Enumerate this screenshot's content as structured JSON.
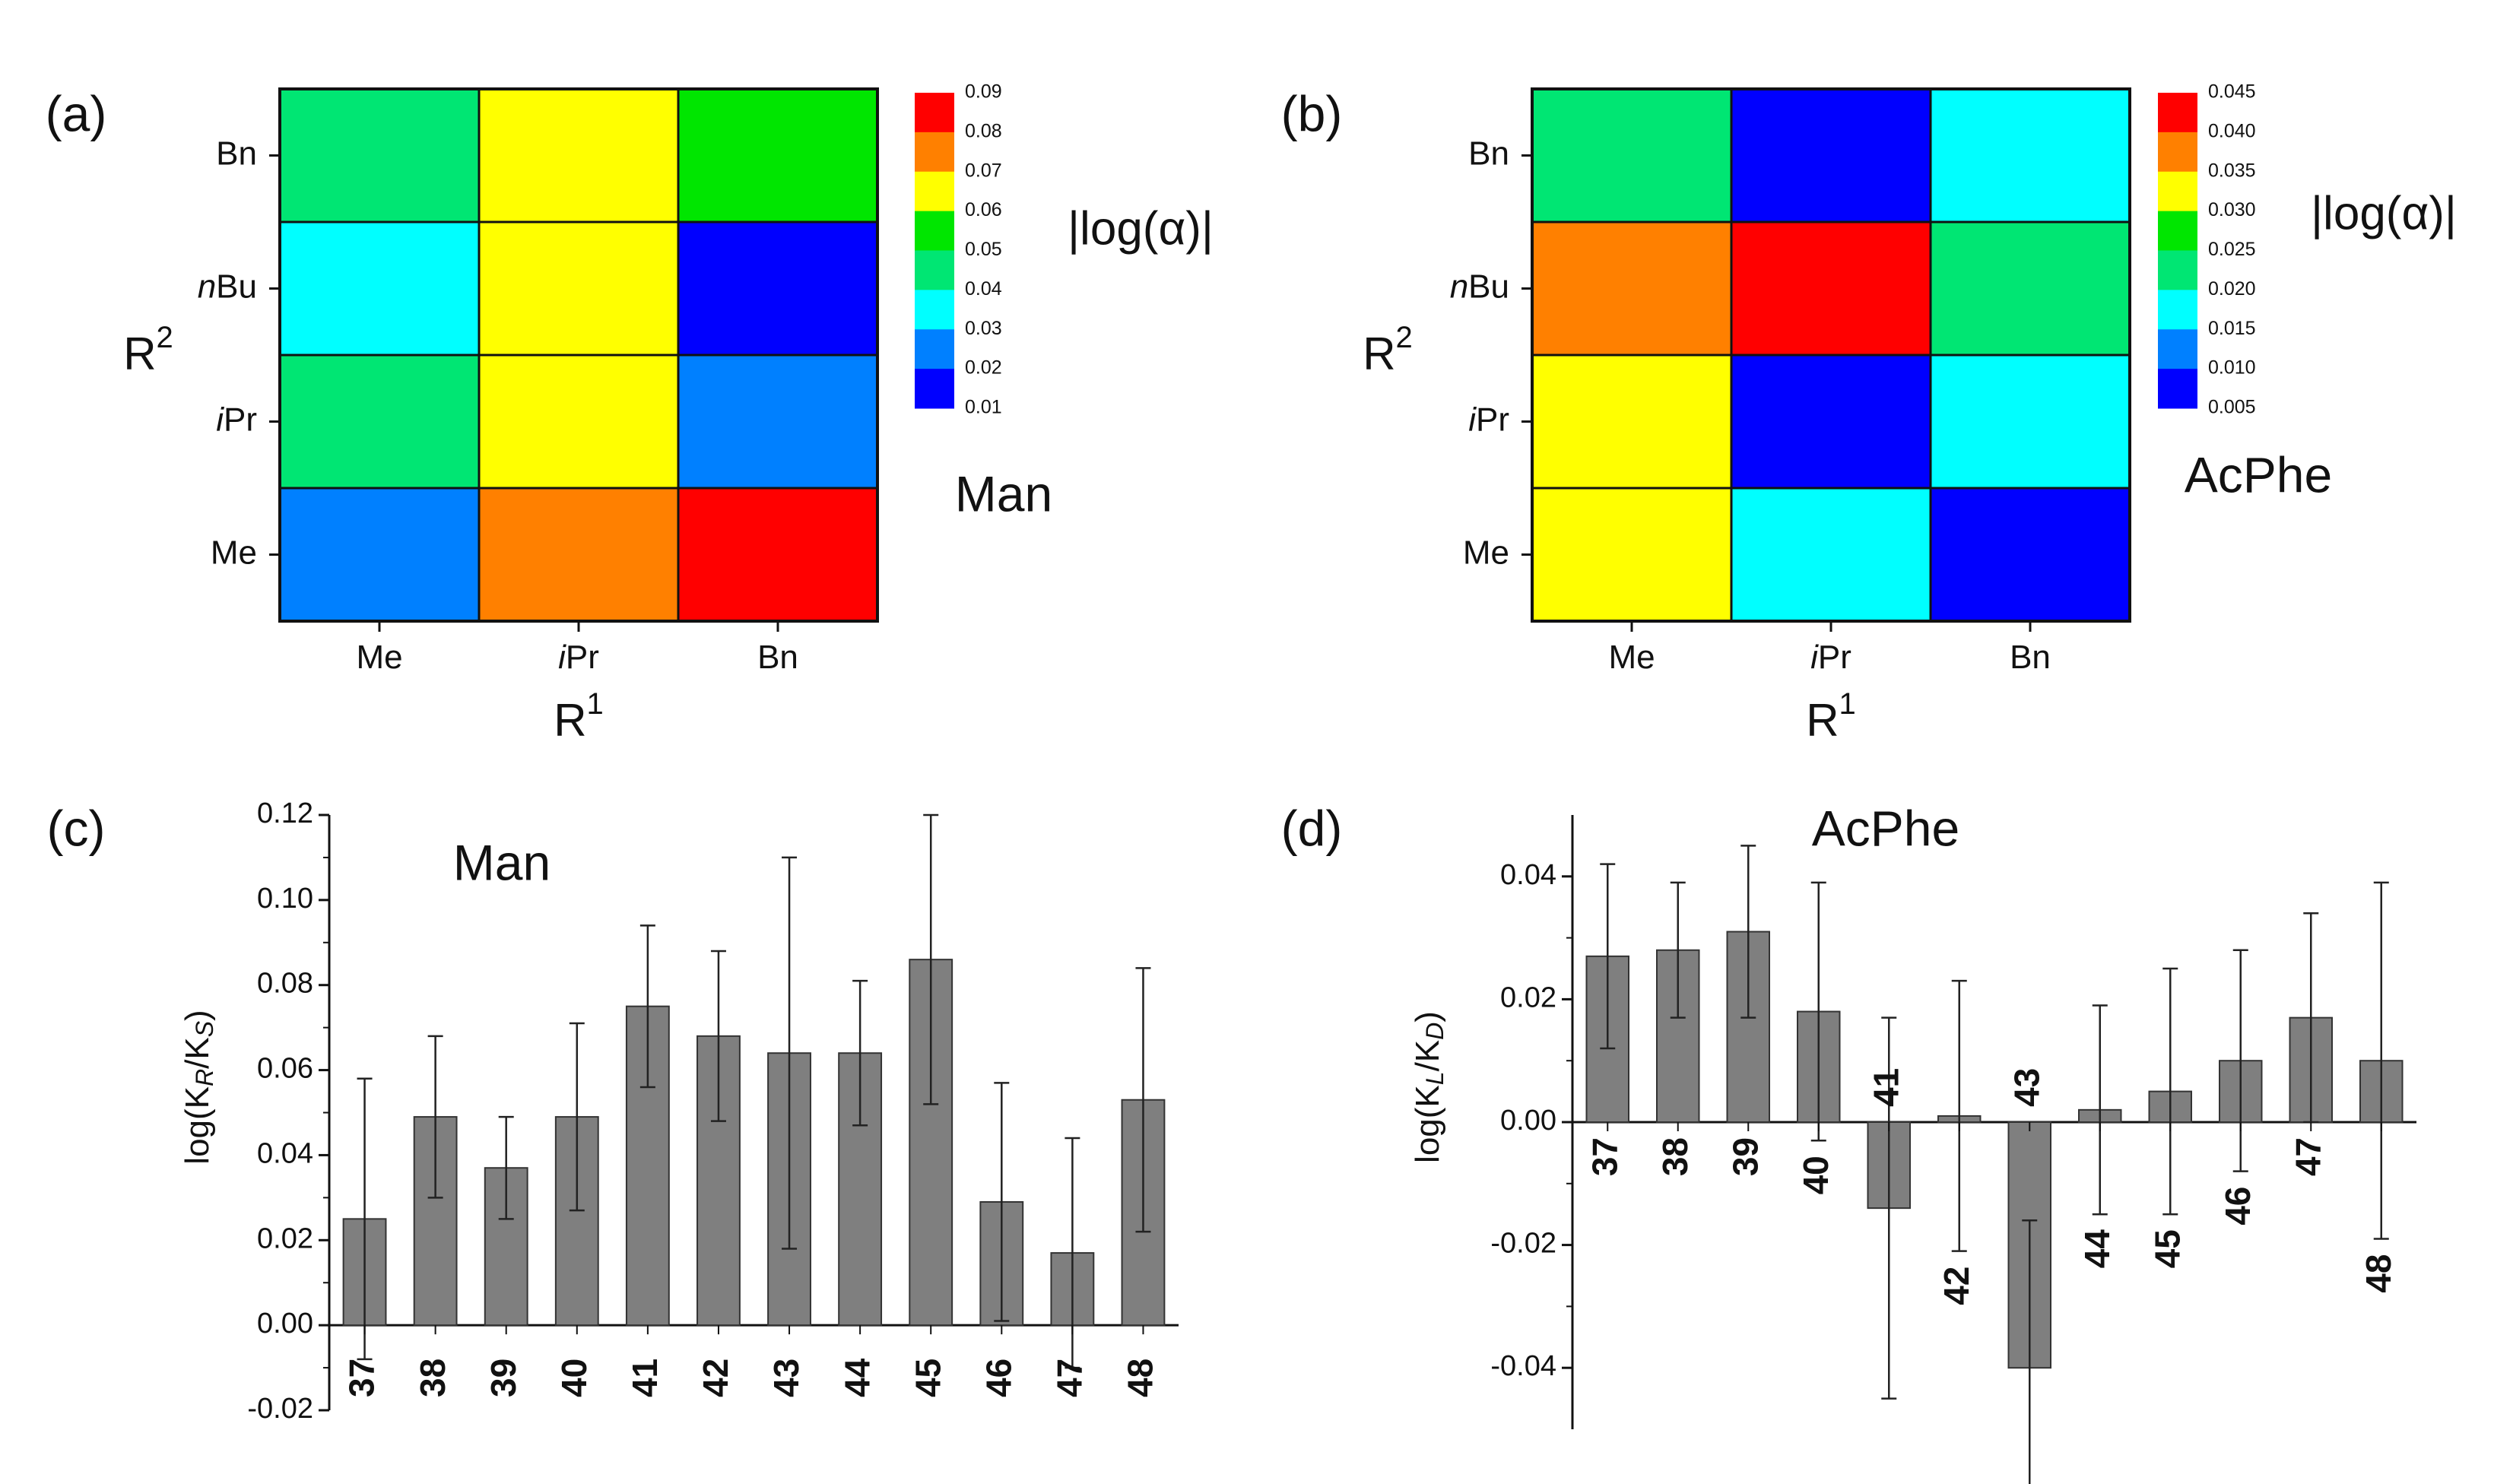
{
  "chart_data": [
    {
      "panel": "(a)",
      "type": "heatmap",
      "title": "Man",
      "xlabel": "R",
      "xlabel_sup": "1",
      "ylabel": "R",
      "ylabel_sup": "2",
      "x_categories": [
        {
          "prefix": "",
          "name": "Me"
        },
        {
          "prefix": "i",
          "name": "Pr"
        },
        {
          "prefix": "",
          "name": "Bn"
        }
      ],
      "y_categories": [
        {
          "prefix": "",
          "name": "Bn"
        },
        {
          "prefix": "n",
          "name": "Bu"
        },
        {
          "prefix": "i",
          "name": "Pr"
        },
        {
          "prefix": "",
          "name": "Me"
        }
      ],
      "values": [
        [
          0.045,
          0.065,
          0.055
        ],
        [
          0.035,
          0.065,
          0.015
        ],
        [
          0.045,
          0.065,
          0.025
        ],
        [
          0.025,
          0.075,
          0.085
        ]
      ],
      "colorbar": {
        "label": "|log(α)|",
        "ticks": [
          "0.09",
          "0.08",
          "0.07",
          "0.06",
          "0.05",
          "0.04",
          "0.03",
          "0.02",
          "0.01"
        ],
        "colors": [
          "#ff0000",
          "#ff8000",
          "#ffff00",
          "#00e600",
          "#00e673",
          "#00ffff",
          "#0080ff",
          "#0000ff"
        ]
      }
    },
    {
      "panel": "(b)",
      "type": "heatmap",
      "title": "AcPhe",
      "xlabel": "R",
      "xlabel_sup": "1",
      "ylabel": "R",
      "ylabel_sup": "2",
      "x_categories": [
        {
          "prefix": "",
          "name": "Me"
        },
        {
          "prefix": "i",
          "name": "Pr"
        },
        {
          "prefix": "",
          "name": "Bn"
        }
      ],
      "y_categories": [
        {
          "prefix": "",
          "name": "Bn"
        },
        {
          "prefix": "n",
          "name": "Bu"
        },
        {
          "prefix": "i",
          "name": "Pr"
        },
        {
          "prefix": "",
          "name": "Me"
        }
      ],
      "values": [
        [
          0.0225,
          0.0075,
          0.0175
        ],
        [
          0.0375,
          0.0425,
          0.0225
        ],
        [
          0.0325,
          0.0075,
          0.0175
        ],
        [
          0.0325,
          0.0175,
          0.0075
        ]
      ],
      "colorbar": {
        "label": "|log(α)|",
        "ticks": [
          "0.045",
          "0.040",
          "0.035",
          "0.030",
          "0.025",
          "0.020",
          "0.015",
          "0.010",
          "0.005"
        ],
        "colors": [
          "#ff0000",
          "#ff8000",
          "#ffff00",
          "#00e600",
          "#00e673",
          "#00ffff",
          "#0080ff",
          "#0000ff"
        ]
      }
    },
    {
      "panel": "(c)",
      "type": "bar",
      "title": "Man",
      "ylabel_main": "log(K",
      "ylabel_sub1": "R",
      "ylabel_mid": "/K",
      "ylabel_sub2": "S",
      "ylabel_end": ")",
      "ylim": [
        -0.02,
        0.12
      ],
      "yticks": [
        -0.02,
        0.0,
        0.02,
        0.04,
        0.06,
        0.08,
        0.1,
        0.12
      ],
      "ytick_labels": [
        "-0.02",
        "0.00",
        "0.02",
        "0.04",
        "0.06",
        "0.08",
        "0.10",
        "0.12"
      ],
      "categories": [
        "37",
        "38",
        "39",
        "40",
        "41",
        "42",
        "43",
        "44",
        "45",
        "46",
        "47",
        "48"
      ],
      "values": [
        0.025,
        0.049,
        0.037,
        0.049,
        0.075,
        0.068,
        0.064,
        0.064,
        0.086,
        0.029,
        0.017,
        0.053
      ],
      "errors": [
        0.033,
        0.019,
        0.012,
        0.022,
        0.019,
        0.02,
        0.046,
        0.017,
        0.034,
        0.028,
        0.027,
        0.031
      ]
    },
    {
      "panel": "(d)",
      "type": "bar",
      "title": "AcPhe",
      "ylabel_main": "log(K",
      "ylabel_sub1": "L",
      "ylabel_mid": "/K",
      "ylabel_sub2": "D",
      "ylabel_end": ")",
      "ylim": [
        -0.05,
        0.05
      ],
      "yticks": [
        -0.04,
        -0.02,
        0.0,
        0.02,
        0.04
      ],
      "ytick_labels": [
        "-0.04",
        "-0.02",
        "0.00",
        "0.02",
        "0.04"
      ],
      "categories": [
        "37",
        "38",
        "39",
        "40",
        "41",
        "42",
        "43",
        "44",
        "45",
        "46",
        "47",
        "48"
      ],
      "values": [
        0.027,
        0.028,
        0.031,
        0.018,
        -0.014,
        0.001,
        -0.04,
        0.002,
        0.005,
        0.01,
        0.017,
        0.01
      ],
      "errors": [
        0.015,
        0.011,
        0.014,
        0.021,
        0.031,
        0.022,
        0.024,
        0.017,
        0.02,
        0.018,
        0.017,
        0.029
      ]
    }
  ]
}
